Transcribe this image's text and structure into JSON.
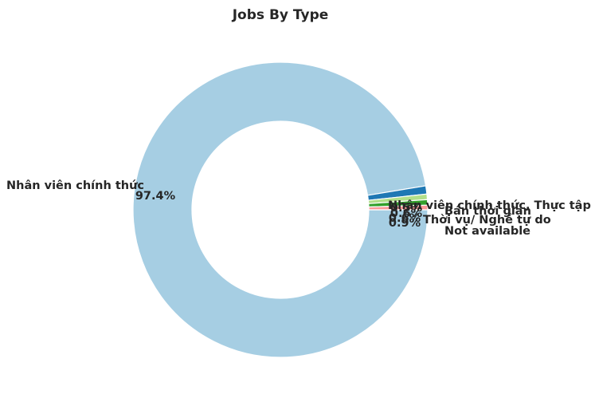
{
  "chart_data": {
    "type": "pie",
    "title": "Jobs By Type",
    "donut": true,
    "categories": [
      "Nhân viên chính thức",
      "Not available",
      "Thời vụ/ Nghề tự do",
      "Bán thời gian",
      "Nhân viên chính thức, Thực tập"
    ],
    "values": [
      97.4,
      0.9,
      0.6,
      0.6,
      0.5
    ],
    "percent_labels": [
      "97.4%",
      "0.9%",
      "0.6%",
      "0.6%",
      "0.5%"
    ],
    "colors": [
      "#a6cee3",
      "#1f78b4",
      "#b2df8a",
      "#33a02c",
      "#fb9a99"
    ],
    "start_angle_deg": 0,
    "direction": "clockwise",
    "legend": "none"
  }
}
